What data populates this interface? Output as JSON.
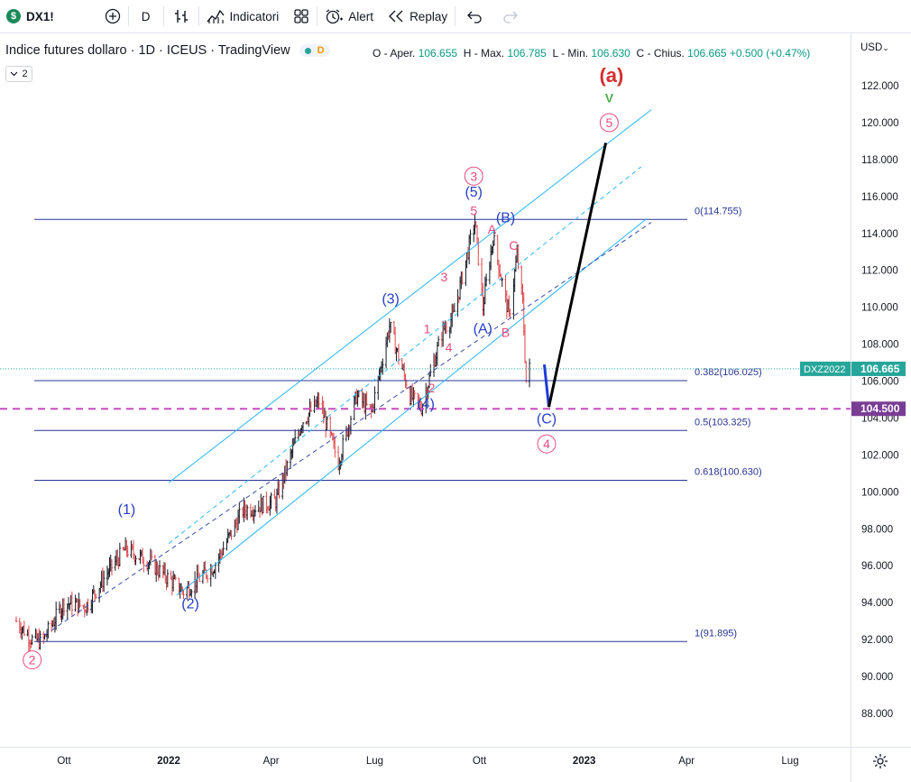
{
  "toolbar": {
    "symbol": "DX1!",
    "symbol_badge": "$",
    "interval": "D",
    "indicators_label": "Indicatori",
    "alert_label": "Alert",
    "replay_label": "Replay",
    "icons": [
      "plus-circle-icon",
      "bar-style-icon",
      "indicators-icon",
      "layout-grid-icon",
      "alarm-clock-icon",
      "replay-icon",
      "undo-icon",
      "redo-icon"
    ]
  },
  "legend": {
    "title": "Indice futures dollaro · 1D · ICEUS · TradingView",
    "mode_badge": "D",
    "ohlc": {
      "o_label": "O - Aper.",
      "o": "106.655",
      "h_label": "H - Max.",
      "h": "106.785",
      "l_label": "L - Min.",
      "l": "106.630",
      "c_label": "C - Chius.",
      "c": "106.665",
      "change": "+0.500 (+0.47%)"
    },
    "collapse_count": "2"
  },
  "currency": "USD",
  "colors": {
    "candle": "#131722",
    "channel": "#29b6f6",
    "fib": "#283593",
    "wave_blue": "#2740c4",
    "wave_pink": "#e84a7a",
    "wave_red": "#d32f2f",
    "wave_green": "#4caf50",
    "projection": "#000000",
    "support_dashed": "#c94bc0",
    "price_tag": "#26a69a",
    "support_tag": "#7a3d94"
  },
  "chart_data": {
    "type": "candlestick",
    "y_ticks": [
      "88.000",
      "90.000",
      "92.000",
      "94.000",
      "96.000",
      "98.000",
      "100.000",
      "102.000",
      "104.000",
      "106.000",
      "108.000",
      "110.000",
      "112.000",
      "114.000",
      "116.000",
      "118.000",
      "120.000",
      "122.000"
    ],
    "x_ticks": [
      "Ott",
      "2022",
      "Apr",
      "Lug",
      "Ott",
      "2023",
      "Apr",
      "Lug"
    ],
    "ylim": [
      87,
      124.5
    ],
    "trend_path": [
      [
        "2021-08-20",
        93.0
      ],
      [
        "2021-09-03",
        92.0
      ],
      [
        "2021-09-12",
        91.9
      ],
      [
        "2021-10-01",
        94.0
      ],
      [
        "2021-10-20",
        93.8
      ],
      [
        "2021-11-10",
        95.8
      ],
      [
        "2021-11-24",
        96.9
      ],
      [
        "2021-12-15",
        96.2
      ],
      [
        "2022-01-14",
        94.6
      ],
      [
        "2022-02-10",
        96.0
      ],
      [
        "2022-03-07",
        99.0
      ],
      [
        "2022-04-05",
        99.5
      ],
      [
        "2022-04-28",
        103.8
      ],
      [
        "2022-05-13",
        104.9
      ],
      [
        "2022-05-30",
        101.6
      ],
      [
        "2022-06-15",
        105.2
      ],
      [
        "2022-06-28",
        104.3
      ],
      [
        "2022-07-14",
        109.0
      ],
      [
        "2022-08-01",
        105.2
      ],
      [
        "2022-08-11",
        104.6
      ],
      [
        "2022-08-30",
        108.8
      ],
      [
        "2022-09-08",
        109.5
      ],
      [
        "2022-09-27",
        114.7
      ],
      [
        "2022-10-04",
        110.0
      ],
      [
        "2022-10-13",
        113.8
      ],
      [
        "2022-10-27",
        109.5
      ],
      [
        "2022-11-03",
        112.8
      ],
      [
        "2022-11-08",
        110.2
      ],
      [
        "2022-11-11",
        106.0
      ],
      [
        "2022-11-14",
        106.665
      ]
    ],
    "fib_levels": [
      {
        "label": "0(114.755)",
        "value": 114.755
      },
      {
        "label": "0.382(106.025)",
        "value": 106.025
      },
      {
        "label": "0.5(103.325)",
        "value": 103.325
      },
      {
        "label": "0.618(100.630)",
        "value": 100.63
      },
      {
        "label": "1(91.895)",
        "value": 91.895
      }
    ],
    "channel_lines": [
      {
        "x1": "2022-01-01",
        "y1": 100.5,
        "x2": "2023-03-01",
        "y2": 120.7,
        "style": "solid"
      },
      {
        "x1": "2022-01-01",
        "y1": 97.2,
        "x2": "2023-02-20",
        "y2": 117.6,
        "style": "dashed"
      },
      {
        "x1": "2022-01-08",
        "y1": 94.4,
        "x2": "2023-02-25",
        "y2": 114.8,
        "style": "solid"
      },
      {
        "x1": "2021-09-08",
        "y1": 92.0,
        "x2": "2023-03-01",
        "y2": 114.6,
        "style": "dashed"
      }
    ],
    "projection": [
      [
        "2022-11-27",
        106.9
      ],
      [
        "2022-12-01",
        104.6
      ],
      [
        "2023-01-20",
        118.9
      ]
    ],
    "support_line": 104.5,
    "price_tag": {
      "label": "DXZ2022",
      "value": "106.665",
      "y": 106.665
    },
    "support_tag": {
      "value": "104.500",
      "y": 104.5
    },
    "wave_labels": [
      {
        "text": "(1)",
        "x": "2021-11-25",
        "y": 98.8,
        "color": "blue"
      },
      {
        "text": "(2)",
        "x": "2022-01-20",
        "y": 93.7,
        "color": "blue"
      },
      {
        "text": "(3)",
        "x": "2022-07-15",
        "y": 110.2,
        "color": "blue"
      },
      {
        "text": "(4)",
        "x": "2022-08-15",
        "y": 104.5,
        "color": "blue"
      },
      {
        "text": "(5)",
        "x": "2022-09-26",
        "y": 116.0,
        "color": "blue"
      },
      {
        "text": "(A)",
        "x": "2022-10-04",
        "y": 108.6,
        "color": "blue"
      },
      {
        "text": "(B)",
        "x": "2022-10-24",
        "y": 114.6,
        "color": "blue"
      },
      {
        "text": "(C)",
        "x": "2022-11-29",
        "y": 103.7,
        "color": "blue"
      },
      {
        "text": "1",
        "x": "2022-08-16",
        "y": 108.6,
        "color": "pink"
      },
      {
        "text": "2",
        "x": "2022-08-20",
        "y": 105.4,
        "color": "pink"
      },
      {
        "text": "3",
        "x": "2022-08-31",
        "y": 111.4,
        "color": "pink"
      },
      {
        "text": "4",
        "x": "2022-09-04",
        "y": 107.6,
        "color": "pink"
      },
      {
        "text": "5",
        "x": "2022-09-26",
        "y": 115.0,
        "color": "pink"
      },
      {
        "text": "A",
        "x": "2022-10-12",
        "y": 114.0,
        "color": "pink"
      },
      {
        "text": "B",
        "x": "2022-10-24",
        "y": 108.4,
        "color": "pink"
      },
      {
        "text": "C",
        "x": "2022-10-31",
        "y": 113.1,
        "color": "pink"
      },
      {
        "text": "V",
        "x": "2023-01-23",
        "y": 121.1,
        "color": "green"
      },
      {
        "text": "(a)",
        "x": "2023-01-25",
        "y": 122.2,
        "color": "red"
      }
    ],
    "circled_labels": [
      {
        "text": "2",
        "x": "2021-09-03",
        "y": 90.9
      },
      {
        "text": "3",
        "x": "2022-09-26",
        "y": 117.1
      },
      {
        "text": "4",
        "x": "2022-11-29",
        "y": 102.6
      },
      {
        "text": "5",
        "x": "2023-01-23",
        "y": 120.0
      }
    ]
  }
}
